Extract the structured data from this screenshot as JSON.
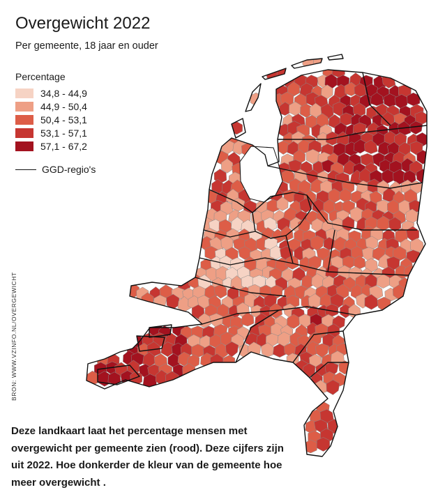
{
  "title": "Overgewicht 2022",
  "subtitle": "Per gemeente, 18 jaar en ouder",
  "legend": {
    "title": "Percentage",
    "classes": [
      {
        "label": "34,8 - 44,9",
        "color": "#f6d3c4"
      },
      {
        "label": "44,9 - 50,4",
        "color": "#ee9f85"
      },
      {
        "label": "50,4 - 53,1",
        "color": "#dd5d47"
      },
      {
        "label": "53,1 - 57,1",
        "color": "#c63631"
      },
      {
        "label": "57,1 - 67,2",
        "color": "#a3121f"
      }
    ],
    "boundary_label": "GGD-regio's"
  },
  "source": "BRON: WWW.VZINFO.NL/OVERGEWICHT",
  "caption": "Deze landkaart laat het percentage mensen met overgewicht per gemeente zien (rood). Deze cijfers zijn uit 2022. Hoe donkerder de kleur van de gemeente hoe meer overgewicht .",
  "colors": {
    "municipality_border": "#8a8a8a",
    "ggd_border": "#111111",
    "water": "#ffffff"
  }
}
